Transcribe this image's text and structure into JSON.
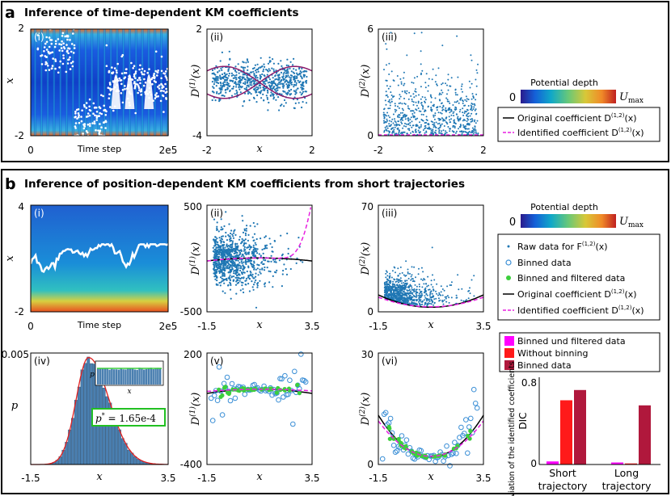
{
  "panel_a": {
    "letter": "a",
    "title": "Inference of time-dependent KM coefficients",
    "legend": {
      "colorbar_title": "Potential depth",
      "colorbar_min": "0",
      "colorbar_max": "U",
      "colorbar_max_sub": "max",
      "line_original": "Original coefficient D",
      "line_original_sup": "(1,2)",
      "line_original_arg": "(x)",
      "line_identified": "Identified coefficient D",
      "line_identified_sup": "(1,2)",
      "line_identified_arg": "(x)"
    }
  },
  "panel_b": {
    "letter": "b",
    "title": "Inference of position-dependent KM coefficients from short trajectories",
    "legend": {
      "colorbar_title": "Potential depth",
      "colorbar_min": "0",
      "colorbar_max": "U",
      "colorbar_max_sub": "max",
      "raw": "Raw data for F",
      "raw_sup": "(1,2)",
      "raw_arg": "(x)",
      "binned": "Binned data",
      "binned_filtered": "Binned and filtered data",
      "original": "Original coefficient D",
      "original_sup": "(1,2)",
      "original_arg": "(x)",
      "identified": "Identified coefficient D",
      "identified_sup": "(1,2)",
      "identified_arg": "(x)"
    }
  },
  "colors": {
    "scatter": "#1f77b4",
    "original": "#000000",
    "identified": "#e81ee0",
    "binned": "#3b8fd6",
    "filtered": "#3ccf3c",
    "purple_curve": "#8b1a6b",
    "bar_magenta": "#ff00ff",
    "bar_red": "#ff1a1a",
    "bar_darkred": "#b0183c",
    "fit_red": "#e02020"
  },
  "chart_data": [
    {
      "id": "a-i",
      "type": "heatmap",
      "panel_label": "(i)",
      "xlabel": "Time step",
      "ylabel": "x",
      "x_ticks": [
        "0",
        "2e5"
      ],
      "y_ticks": [
        "2",
        "-2"
      ],
      "xlim": [
        0,
        200000
      ],
      "ylim": [
        -2,
        2
      ]
    },
    {
      "id": "a-ii",
      "type": "scatter",
      "panel_label": "(ii)",
      "ylabel": "D(1)(x)",
      "ylabel_main": "D",
      "ylabel_sup": "(1)",
      "ylabel_arg": "(x)",
      "xlabel": "x",
      "x_ticks": [
        "-2",
        "2"
      ],
      "y_ticks": [
        "2",
        "-4"
      ],
      "xlim": [
        -2,
        2
      ],
      "ylim": [
        -4,
        2
      ]
    },
    {
      "id": "a-iii",
      "type": "scatter",
      "panel_label": "(iii)",
      "ylabel": "D(2)(x)",
      "ylabel_main": "D",
      "ylabel_sup": "(2)",
      "ylabel_arg": "(x)",
      "xlabel": "x",
      "x_ticks": [
        "-2",
        "2"
      ],
      "y_ticks": [
        "6",
        "0"
      ],
      "xlim": [
        -2,
        2
      ],
      "ylim": [
        0,
        6
      ]
    },
    {
      "id": "b-i",
      "type": "heatmap",
      "panel_label": "(i)",
      "xlabel": "Time step",
      "ylabel": "x",
      "x_ticks": [
        "0",
        "2e5"
      ],
      "y_ticks": [
        "4",
        "-2"
      ],
      "xlim": [
        0,
        200000
      ],
      "ylim": [
        -2,
        4
      ]
    },
    {
      "id": "b-ii",
      "type": "scatter",
      "panel_label": "(ii)",
      "ylabel": "D(1)(x)",
      "ylabel_main": "D",
      "ylabel_sup": "(1)",
      "ylabel_arg": "(x)",
      "xlabel": "x",
      "x_ticks": [
        "-1.5",
        "3.5"
      ],
      "y_ticks": [
        "500",
        "-500"
      ],
      "xlim": [
        -1.5,
        3.5
      ],
      "ylim": [
        -500,
        500
      ]
    },
    {
      "id": "b-iii",
      "type": "scatter",
      "panel_label": "(iii)",
      "ylabel": "D(2)(x)",
      "ylabel_main": "D",
      "ylabel_sup": "(2)",
      "ylabel_arg": "(x)",
      "xlabel": "x",
      "x_ticks": [
        "-1.5",
        "3.5"
      ],
      "y_ticks": [
        "70",
        "0"
      ],
      "xlim": [
        -1.5,
        3.5
      ],
      "ylim": [
        0,
        70
      ]
    },
    {
      "id": "b-iv",
      "type": "bar",
      "panel_label": "(iv)",
      "xlabel": "x",
      "ylabel": "p",
      "x_ticks": [
        "-1.5",
        "3.5"
      ],
      "y_ticks": [
        "0.005",
        "0"
      ],
      "xlim": [
        -1.5,
        3.5
      ],
      "ylim": [
        0,
        0.005
      ],
      "annotation_main": "p",
      "annotation_sup": "*",
      "annotation_value": " = 1.65e-4",
      "inset_xlabel": "x",
      "inset_ylabel": "p"
    },
    {
      "id": "b-v",
      "type": "scatter",
      "panel_label": "(v)",
      "ylabel": "D(1)(x)",
      "ylabel_main": "D",
      "ylabel_sup": "(1)",
      "ylabel_arg": "(x)",
      "xlabel": "x",
      "x_ticks": [
        "-1.5",
        "3.5"
      ],
      "y_ticks": [
        "200",
        "-400"
      ],
      "xlim": [
        -1.5,
        3.5
      ],
      "ylim": [
        -400,
        200
      ]
    },
    {
      "id": "b-vi",
      "type": "scatter",
      "panel_label": "(vi)",
      "ylabel": "D(2)(x)",
      "ylabel_main": "D",
      "ylabel_sup": "(2)",
      "ylabel_arg": "(x)",
      "xlabel": "x",
      "x_ticks": [
        "-1.5",
        "3.5"
      ],
      "y_ticks": [
        "30",
        "0"
      ],
      "xlim": [
        -1.5,
        3.5
      ],
      "ylim": [
        0,
        30
      ]
    },
    {
      "id": "b-dic",
      "type": "bar",
      "ylabel": "DIC",
      "ylabel2": "Deviation of the identified coefficients",
      "categories": [
        "Short trajectory",
        "Long trajectory"
      ],
      "category_lines": [
        [
          "Short",
          "trajectory"
        ],
        [
          "Long",
          "trajectory"
        ]
      ],
      "series": [
        {
          "name": "Binned und filtered data",
          "values": [
            0.03,
            0.02
          ]
        },
        {
          "name": "Without binning",
          "values": [
            0.63,
            0.01
          ]
        },
        {
          "name": "Binned data",
          "values": [
            0.73,
            0.58
          ]
        }
      ],
      "y_ticks": [
        "0.8",
        "0"
      ],
      "ylim": [
        0,
        0.8
      ]
    }
  ]
}
